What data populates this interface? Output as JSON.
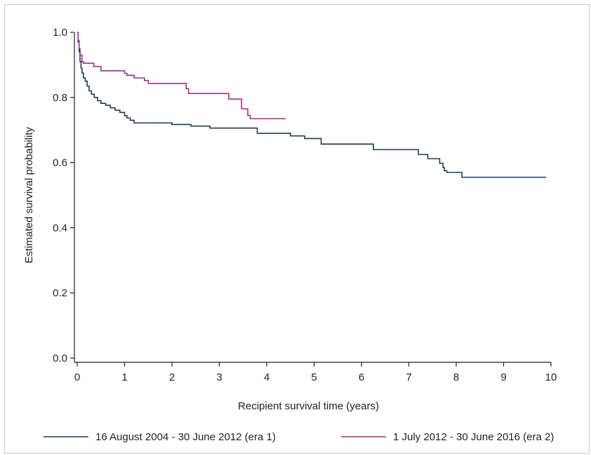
{
  "chart_data": {
    "type": "line",
    "step": true,
    "title": "",
    "xlabel": "Recipient survival time (years)",
    "ylabel": "Estimated survival probability",
    "xlim": [
      0,
      10
    ],
    "ylim": [
      0,
      1.0
    ],
    "xticks": [
      "0",
      "1",
      "2",
      "3",
      "4",
      "5",
      "6",
      "7",
      "8",
      "9",
      "10"
    ],
    "yticks": [
      "0.0",
      "0.2",
      "0.4",
      "0.6",
      "0.8",
      "1.0"
    ],
    "grid": false,
    "legend_position": "bottom",
    "series": [
      {
        "name": "16 August 2004 - 30 June 2012 (era 1)",
        "color": "#1f3a5a",
        "x": [
          0,
          0.02,
          0.04,
          0.06,
          0.08,
          0.1,
          0.13,
          0.17,
          0.21,
          0.25,
          0.3,
          0.36,
          0.43,
          0.5,
          0.6,
          0.7,
          0.8,
          0.9,
          1.0,
          1.05,
          1.12,
          1.2,
          2.0,
          2.4,
          2.8,
          3.8,
          4.5,
          4.8,
          5.15,
          6.25,
          7.2,
          7.4,
          7.65,
          7.72,
          7.75,
          7.8,
          8.12,
          9.9
        ],
        "y": [
          1.0,
          0.97,
          0.94,
          0.91,
          0.89,
          0.875,
          0.86,
          0.85,
          0.835,
          0.82,
          0.81,
          0.8,
          0.79,
          0.782,
          0.776,
          0.768,
          0.761,
          0.754,
          0.744,
          0.737,
          0.73,
          0.722,
          0.717,
          0.712,
          0.706,
          0.69,
          0.682,
          0.674,
          0.657,
          0.64,
          0.625,
          0.612,
          0.598,
          0.585,
          0.575,
          0.57,
          0.555,
          0.555
        ]
      },
      {
        "name": "1 July 2012 - 30 June 2016 (era 2)",
        "color": "#a43180",
        "x": [
          0,
          0.02,
          0.04,
          0.06,
          0.1,
          0.13,
          0.35,
          0.5,
          1.0,
          1.05,
          1.2,
          1.42,
          1.5,
          2.3,
          2.35,
          3.2,
          3.47,
          3.6,
          3.65,
          4.4
        ],
        "y": [
          1.0,
          0.975,
          0.95,
          0.93,
          0.91,
          0.905,
          0.895,
          0.882,
          0.874,
          0.868,
          0.86,
          0.852,
          0.843,
          0.827,
          0.812,
          0.795,
          0.765,
          0.745,
          0.735,
          0.735
        ]
      }
    ]
  }
}
